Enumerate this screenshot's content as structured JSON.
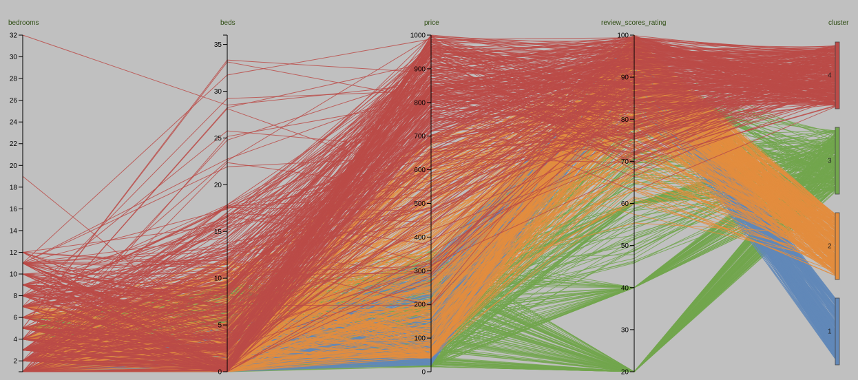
{
  "chart_data": {
    "type": "parallel-coordinates",
    "dimensions": [
      {
        "key": "bedrooms",
        "label": "bedrooms",
        "range": [
          1,
          32
        ],
        "ticks": [
          2,
          4,
          6,
          8,
          10,
          12,
          14,
          16,
          18,
          20,
          22,
          24,
          26,
          28,
          30,
          32
        ]
      },
      {
        "key": "beds",
        "label": "beds",
        "range": [
          0,
          36
        ],
        "ticks": [
          0,
          5,
          10,
          15,
          20,
          25,
          30,
          35
        ]
      },
      {
        "key": "price",
        "label": "price",
        "range": [
          0,
          1000
        ],
        "ticks": [
          0,
          100,
          200,
          300,
          400,
          500,
          600,
          700,
          800,
          900,
          1000
        ]
      },
      {
        "key": "review_scores_rating",
        "label": "review_scores_rating",
        "range": [
          20,
          100
        ],
        "ticks": [
          20,
          30,
          40,
          50,
          60,
          70,
          80,
          90,
          100
        ]
      },
      {
        "key": "cluster",
        "label": "cluster",
        "categorical": true,
        "categories": [
          "4",
          "3",
          "2",
          "1"
        ]
      }
    ],
    "clusters": [
      {
        "id": "1",
        "color": "#6288b8",
        "bedrooms": [
          1,
          3
        ],
        "beds": [
          0,
          5
        ],
        "price": [
          20,
          330
        ],
        "review_scores_rating": [
          83,
          100
        ]
      },
      {
        "id": "2",
        "color": "#e38d3e",
        "bedrooms": [
          1,
          7
        ],
        "beds": [
          0,
          12
        ],
        "price": [
          40,
          700
        ],
        "review_scores_rating": [
          52,
          100
        ]
      },
      {
        "id": "3",
        "color": "#72a64d",
        "bedrooms": [
          1,
          6
        ],
        "beds": [
          0,
          10
        ],
        "price": [
          15,
          360
        ],
        "review_scores_rating": [
          20,
          95
        ]
      },
      {
        "id": "4",
        "color": "#bb4b48",
        "bedrooms": [
          1,
          32
        ],
        "beds": [
          0,
          36
        ],
        "price": [
          100,
          1000
        ],
        "review_scores_rating": [
          60,
          100
        ]
      }
    ]
  }
}
